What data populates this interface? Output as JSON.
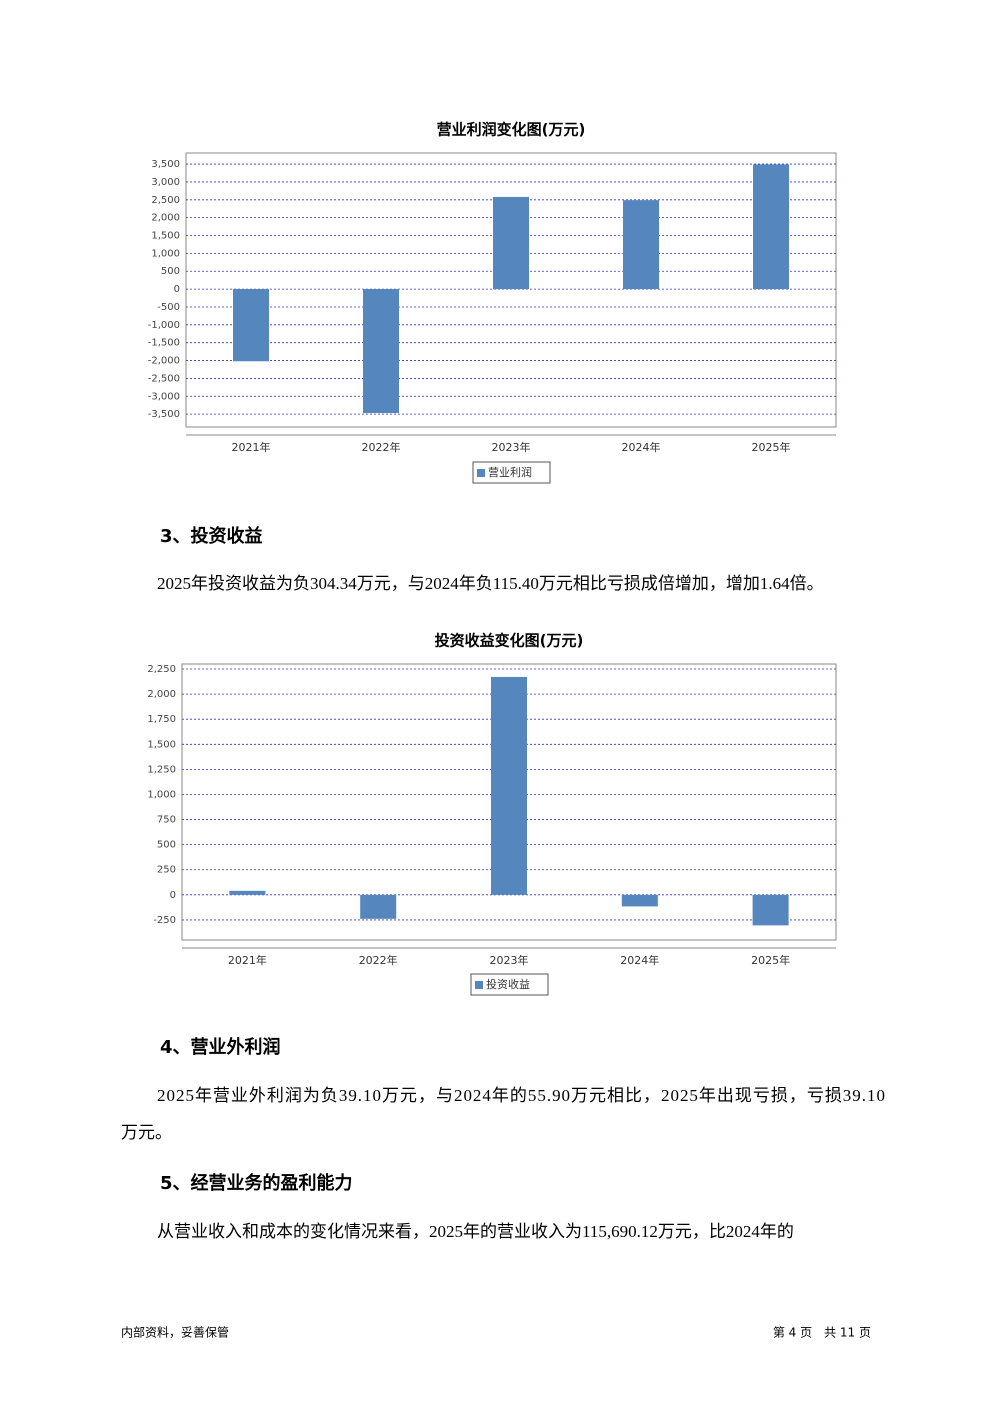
{
  "chart_data": [
    {
      "type": "bar",
      "title": "营业利润变化图(万元)",
      "categories": [
        "2021年",
        "2022年",
        "2023年",
        "2024年",
        "2025年"
      ],
      "series": [
        {
          "name": "营业利润",
          "color": "#5586bd",
          "values": [
            -2020,
            -3470,
            2580,
            2490,
            3490
          ]
        }
      ],
      "ylim": [
        -3860,
        3810
      ],
      "yticks": [
        {
          "value": -3500,
          "label": "-3,500"
        },
        {
          "value": -3000,
          "label": "-3,000"
        },
        {
          "value": -2500,
          "label": "-2,500"
        },
        {
          "value": -2000,
          "label": "-2,000"
        },
        {
          "value": -1500,
          "label": "-1,500"
        },
        {
          "value": -1000,
          "label": "-1,000"
        },
        -500,
        0,
        500,
        {
          "value": 1000,
          "label": "1,000"
        },
        {
          "value": 1500,
          "label": "1,500"
        },
        {
          "value": 2000,
          "label": "2,000"
        },
        {
          "value": 2500,
          "label": "2,500"
        },
        {
          "value": 3000,
          "label": "3,000"
        },
        {
          "value": 3500,
          "label": "3,500"
        }
      ],
      "grid": true
    },
    {
      "type": "bar",
      "title": "投资收益变化图(万元)",
      "categories": [
        "2021年",
        "2022年",
        "2023年",
        "2024年",
        "2025年"
      ],
      "series": [
        {
          "name": "投资收益",
          "color": "#5586bd",
          "values": [
            40,
            -239,
            2171,
            -115.4,
            -304.34
          ]
        }
      ],
      "ylim": [
        -450,
        2300
      ],
      "yticks": [
        -250,
        0,
        250,
        500,
        750,
        {
          "value": 1000,
          "label": "1,000"
        },
        {
          "value": 1250,
          "label": "1,250"
        },
        {
          "value": 1500,
          "label": "1,500"
        },
        {
          "value": 1750,
          "label": "1,750"
        },
        {
          "value": 2000,
          "label": "2,000"
        },
        {
          "value": 2250,
          "label": "2,250"
        }
      ],
      "grid": true
    }
  ],
  "sections": [
    {
      "heading": "3、投资收益",
      "lines": [
        "2025年投资收益为负304.34万元，与2024年负115.40万元相比亏损成倍增加，增加1.64倍。"
      ]
    },
    {
      "heading": "4、营业外利润",
      "lines": [
        "2025年营业外利润为负39.10万元，与2024年的55.90万元相比，2025年出现亏损，亏损39.10",
        "万元。"
      ]
    },
    {
      "heading": "5、经营业务的盈利能力",
      "lines": [
        "从营业收入和成本的变化情况来看，2025年的营业收入为115,690.12万元，比2024年的"
      ]
    }
  ],
  "footer": {
    "left": "内部资料，妥善保管",
    "right": "第 4 页　共 11 页"
  }
}
